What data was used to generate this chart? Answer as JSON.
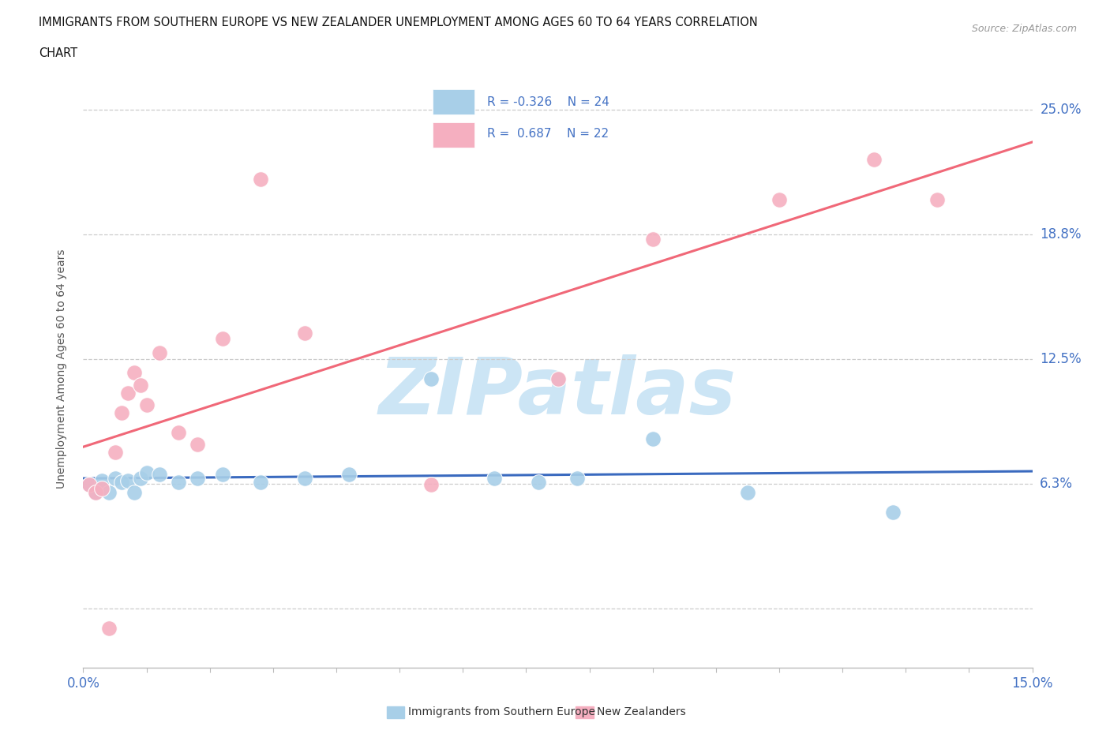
{
  "title_line1": "IMMIGRANTS FROM SOUTHERN EUROPE VS NEW ZEALANDER UNEMPLOYMENT AMONG AGES 60 TO 64 YEARS CORRELATION",
  "title_line2": "CHART",
  "source_text": "Source: ZipAtlas.com",
  "ylabel": "Unemployment Among Ages 60 to 64 years",
  "xmin": 0.0,
  "xmax": 0.15,
  "ymin": -0.03,
  "ymax": 0.27,
  "yticks": [
    0.0,
    0.0625,
    0.125,
    0.1875,
    0.25
  ],
  "ytick_labels": [
    "",
    "6.3%",
    "12.5%",
    "18.8%",
    "25.0%"
  ],
  "blue_label": "Immigrants from Southern Europe",
  "pink_label": "New Zealanders",
  "blue_R": -0.326,
  "blue_N": 24,
  "pink_R": 0.687,
  "pink_N": 22,
  "blue_color": "#a8cfe8",
  "pink_color": "#f5afc0",
  "blue_line_color": "#3a6abf",
  "pink_line_color": "#f06878",
  "text_color": "#4472c4",
  "background_color": "#ffffff",
  "watermark": "ZIPatlas",
  "watermark_color": "#cce5f5",
  "blue_x": [
    0.001,
    0.002,
    0.003,
    0.004,
    0.005,
    0.006,
    0.007,
    0.008,
    0.009,
    0.01,
    0.012,
    0.015,
    0.018,
    0.022,
    0.028,
    0.035,
    0.042,
    0.055,
    0.065,
    0.072,
    0.078,
    0.09,
    0.105,
    0.128
  ],
  "blue_y": [
    0.062,
    0.058,
    0.064,
    0.058,
    0.065,
    0.063,
    0.064,
    0.058,
    0.065,
    0.068,
    0.067,
    0.063,
    0.065,
    0.067,
    0.063,
    0.065,
    0.067,
    0.115,
    0.065,
    0.063,
    0.065,
    0.085,
    0.058,
    0.048
  ],
  "pink_x": [
    0.001,
    0.002,
    0.003,
    0.004,
    0.005,
    0.006,
    0.007,
    0.008,
    0.009,
    0.01,
    0.012,
    0.015,
    0.018,
    0.022,
    0.028,
    0.035,
    0.055,
    0.075,
    0.09,
    0.11,
    0.125,
    0.135
  ],
  "pink_y": [
    0.062,
    0.058,
    0.06,
    -0.01,
    0.078,
    0.098,
    0.108,
    0.118,
    0.112,
    0.102,
    0.128,
    0.088,
    0.082,
    0.135,
    0.215,
    0.138,
    0.062,
    0.115,
    0.185,
    0.205,
    0.225,
    0.205
  ],
  "blue_line_x0": 0.0,
  "blue_line_x1": 0.15,
  "pink_line_x0": 0.0,
  "pink_line_x1": 0.15
}
